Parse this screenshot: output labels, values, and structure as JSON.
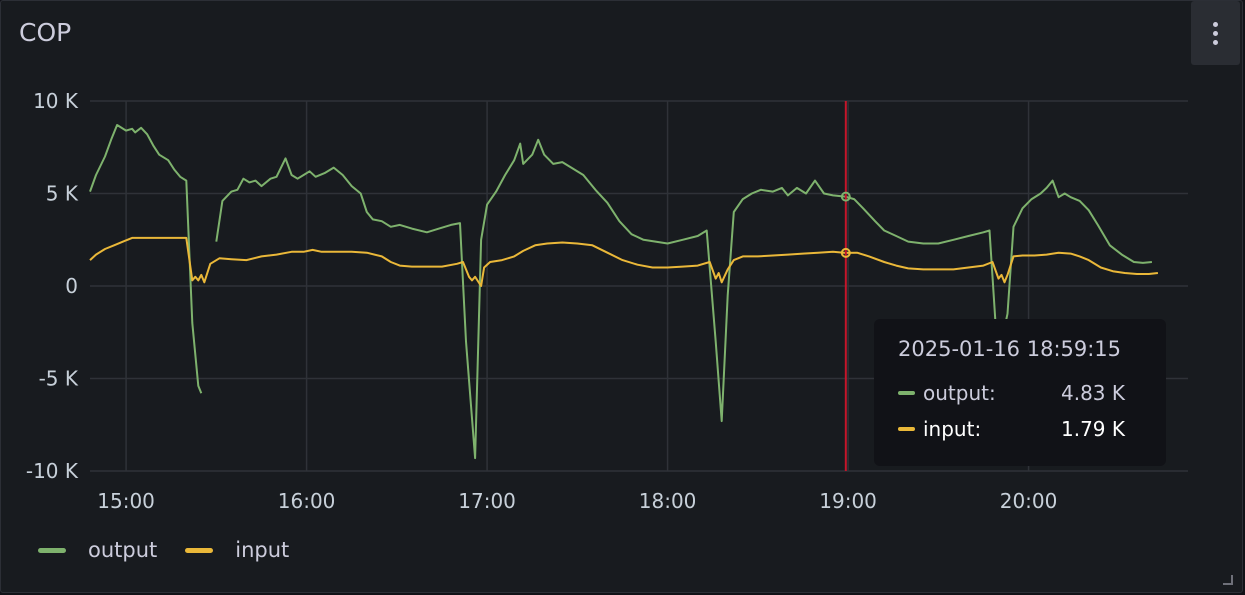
{
  "panel": {
    "title": "COP"
  },
  "colors": {
    "output": "#7eb26d",
    "input": "#eab839",
    "cursor": "#c4162a",
    "grid": "#2f3238"
  },
  "icons": {
    "menu": "vertical-dots-icon",
    "resize": "resize-handle-icon"
  },
  "tooltip": {
    "time": "2025-01-16 18:59:15",
    "rows": [
      {
        "label": "output:",
        "value": "4.83 K"
      },
      {
        "label": "input:",
        "value": "1.79 K"
      }
    ]
  },
  "chart_data": {
    "type": "line",
    "title": "COP",
    "xlabel": "",
    "ylabel": "",
    "x_ticks": [
      "15:00",
      "16:00",
      "17:00",
      "18:00",
      "19:00",
      "20:00"
    ],
    "y_ticks": [
      "10 K",
      "5 K",
      "0",
      "-5 K",
      "-10 K"
    ],
    "ylim": [
      -10000,
      10000
    ],
    "xlim": [
      "14:48",
      "20:53"
    ],
    "grid": true,
    "legend": "bottom-left",
    "cursor_time": "18:59:15",
    "series": [
      {
        "name": "output",
        "color": "#7eb26d",
        "points": [
          [
            "14:48",
            5100
          ],
          [
            "14:50",
            6000
          ],
          [
            "14:53",
            7000
          ],
          [
            "14:55",
            7900
          ],
          [
            "14:57",
            8700
          ],
          [
            "14:58",
            8600
          ],
          [
            "15:00",
            8400
          ],
          [
            "15:02",
            8500
          ],
          [
            "15:03",
            8300
          ],
          [
            "15:05",
            8550
          ],
          [
            "15:07",
            8200
          ],
          [
            "15:09",
            7600
          ],
          [
            "15:11",
            7100
          ],
          [
            "15:14",
            6800
          ],
          [
            "15:16",
            6300
          ],
          [
            "15:18",
            5900
          ],
          [
            "15:20",
            5700
          ],
          [
            "15:22",
            -2000
          ],
          [
            "15:24",
            -5400
          ],
          [
            "15:25",
            -5800
          ],
          null,
          [
            "15:30",
            2400
          ],
          [
            "15:32",
            4600
          ],
          [
            "15:35",
            5100
          ],
          [
            "15:37",
            5200
          ],
          [
            "15:39",
            5800
          ],
          [
            "15:41",
            5600
          ],
          [
            "15:43",
            5700
          ],
          [
            "15:45",
            5400
          ],
          [
            "15:48",
            5800
          ],
          [
            "15:50",
            5900
          ],
          [
            "15:53",
            6900
          ],
          [
            "15:55",
            6000
          ],
          [
            "15:57",
            5800
          ],
          [
            "15:59",
            6000
          ],
          [
            "16:01",
            6200
          ],
          [
            "16:03",
            5900
          ],
          [
            "16:06",
            6100
          ],
          [
            "16:09",
            6400
          ],
          [
            "16:12",
            6000
          ],
          [
            "16:15",
            5400
          ],
          [
            "16:18",
            5000
          ],
          [
            "16:20",
            4000
          ],
          [
            "16:22",
            3600
          ],
          [
            "16:25",
            3500
          ],
          [
            "16:28",
            3200
          ],
          [
            "16:31",
            3300
          ],
          [
            "16:35",
            3100
          ],
          [
            "16:40",
            2900
          ],
          [
            "16:44",
            3100
          ],
          [
            "16:48",
            3300
          ],
          [
            "16:51",
            3400
          ],
          [
            "16:53",
            -3000
          ],
          [
            "16:56",
            -9300
          ],
          [
            "16:58",
            2500
          ],
          [
            "17:00",
            4400
          ],
          [
            "17:03",
            5100
          ],
          [
            "17:06",
            6000
          ],
          [
            "17:09",
            6800
          ],
          [
            "17:11",
            7700
          ],
          [
            "17:12",
            6600
          ],
          [
            "17:15",
            7100
          ],
          [
            "17:17",
            7900
          ],
          [
            "17:19",
            7100
          ],
          [
            "17:22",
            6600
          ],
          [
            "17:25",
            6700
          ],
          [
            "17:28",
            6400
          ],
          [
            "17:32",
            6000
          ],
          [
            "17:36",
            5200
          ],
          [
            "17:40",
            4500
          ],
          [
            "17:44",
            3500
          ],
          [
            "17:48",
            2800
          ],
          [
            "17:52",
            2500
          ],
          [
            "17:56",
            2400
          ],
          [
            "18:00",
            2300
          ],
          [
            "18:05",
            2500
          ],
          [
            "18:10",
            2700
          ],
          [
            "18:13",
            3000
          ],
          [
            "18:16",
            -3000
          ],
          [
            "18:18",
            -7300
          ],
          [
            "18:20",
            -500
          ],
          [
            "18:22",
            4000
          ],
          [
            "18:25",
            4700
          ],
          [
            "18:28",
            5000
          ],
          [
            "18:31",
            5200
          ],
          [
            "18:35",
            5100
          ],
          [
            "18:38",
            5300
          ],
          [
            "18:40",
            4900
          ],
          [
            "18:43",
            5300
          ],
          [
            "18:46",
            5000
          ],
          [
            "18:49",
            5700
          ],
          [
            "18:52",
            5000
          ],
          [
            "18:55",
            4900
          ],
          [
            "18:59",
            4830
          ],
          [
            "19:02",
            4700
          ],
          [
            "19:05",
            4200
          ],
          [
            "19:09",
            3500
          ],
          [
            "19:12",
            3000
          ],
          [
            "19:16",
            2700
          ],
          [
            "19:20",
            2400
          ],
          [
            "19:25",
            2300
          ],
          [
            "19:30",
            2300
          ],
          [
            "19:35",
            2500
          ],
          [
            "19:40",
            2700
          ],
          [
            "19:45",
            2900
          ],
          [
            "19:47",
            3000
          ],
          [
            "19:49",
            -2000
          ],
          [
            "19:51",
            -3000
          ],
          [
            "19:53",
            -1500
          ],
          [
            "19:55",
            3200
          ],
          [
            "19:58",
            4200
          ],
          [
            "20:01",
            4700
          ],
          [
            "20:04",
            5000
          ],
          [
            "20:06",
            5300
          ],
          [
            "20:08",
            5700
          ],
          [
            "20:10",
            4800
          ],
          [
            "20:12",
            5000
          ],
          [
            "20:14",
            4800
          ],
          [
            "20:17",
            4600
          ],
          [
            "20:20",
            4100
          ],
          [
            "20:23",
            3300
          ],
          [
            "20:27",
            2200
          ],
          [
            "20:31",
            1700
          ],
          [
            "20:35",
            1300
          ],
          [
            "20:38",
            1250
          ],
          [
            "20:41",
            1300
          ]
        ]
      },
      {
        "name": "input",
        "color": "#eab839",
        "points": [
          [
            "14:48",
            1400
          ],
          [
            "14:50",
            1700
          ],
          [
            "14:53",
            2000
          ],
          [
            "14:56",
            2200
          ],
          [
            "14:59",
            2400
          ],
          [
            "15:02",
            2600
          ],
          [
            "15:07",
            2600
          ],
          [
            "15:12",
            2600
          ],
          [
            "15:17",
            2600
          ],
          [
            "15:20",
            2600
          ],
          [
            "15:22",
            300
          ],
          [
            "15:23",
            500
          ],
          [
            "15:24",
            300
          ],
          [
            "15:25",
            600
          ],
          [
            "15:26",
            200
          ],
          [
            "15:28",
            1200
          ],
          [
            "15:31",
            1500
          ],
          [
            "15:35",
            1450
          ],
          [
            "15:40",
            1400
          ],
          [
            "15:45",
            1600
          ],
          [
            "15:50",
            1700
          ],
          [
            "15:55",
            1850
          ],
          [
            "15:59",
            1850
          ],
          [
            "16:02",
            1950
          ],
          [
            "16:05",
            1850
          ],
          [
            "16:10",
            1850
          ],
          [
            "16:15",
            1850
          ],
          [
            "16:20",
            1800
          ],
          [
            "16:25",
            1600
          ],
          [
            "16:28",
            1300
          ],
          [
            "16:31",
            1100
          ],
          [
            "16:35",
            1050
          ],
          [
            "16:40",
            1050
          ],
          [
            "16:45",
            1050
          ],
          [
            "16:50",
            1200
          ],
          [
            "16:52",
            1300
          ],
          [
            "16:54",
            500
          ],
          [
            "16:55",
            300
          ],
          [
            "16:56",
            500
          ],
          [
            "16:58",
            0
          ],
          [
            "16:59",
            1000
          ],
          [
            "17:01",
            1300
          ],
          [
            "17:05",
            1400
          ],
          [
            "17:09",
            1600
          ],
          [
            "17:12",
            1900
          ],
          [
            "17:16",
            2200
          ],
          [
            "17:20",
            2300
          ],
          [
            "17:25",
            2350
          ],
          [
            "17:30",
            2300
          ],
          [
            "17:35",
            2200
          ],
          [
            "17:40",
            1800
          ],
          [
            "17:45",
            1400
          ],
          [
            "17:50",
            1150
          ],
          [
            "17:55",
            1000
          ],
          [
            "18:00",
            1000
          ],
          [
            "18:05",
            1050
          ],
          [
            "18:10",
            1100
          ],
          [
            "18:14",
            1300
          ],
          [
            "18:16",
            400
          ],
          [
            "18:17",
            700
          ],
          [
            "18:18",
            200
          ],
          [
            "18:20",
            900
          ],
          [
            "18:22",
            1400
          ],
          [
            "18:25",
            1600
          ],
          [
            "18:30",
            1600
          ],
          [
            "18:35",
            1650
          ],
          [
            "18:40",
            1700
          ],
          [
            "18:45",
            1750
          ],
          [
            "18:50",
            1800
          ],
          [
            "18:55",
            1850
          ],
          [
            "18:59",
            1790
          ],
          [
            "19:03",
            1800
          ],
          [
            "19:07",
            1600
          ],
          [
            "19:12",
            1300
          ],
          [
            "19:16",
            1100
          ],
          [
            "19:20",
            950
          ],
          [
            "19:25",
            900
          ],
          [
            "19:30",
            900
          ],
          [
            "19:35",
            900
          ],
          [
            "19:40",
            1000
          ],
          [
            "19:45",
            1100
          ],
          [
            "19:48",
            1300
          ],
          [
            "19:50",
            400
          ],
          [
            "19:51",
            600
          ],
          [
            "19:52",
            200
          ],
          [
            "19:53",
            600
          ],
          [
            "19:55",
            1600
          ],
          [
            "19:58",
            1650
          ],
          [
            "20:02",
            1650
          ],
          [
            "20:06",
            1700
          ],
          [
            "20:10",
            1800
          ],
          [
            "20:14",
            1750
          ],
          [
            "20:17",
            1600
          ],
          [
            "20:20",
            1400
          ],
          [
            "20:24",
            1000
          ],
          [
            "20:28",
            800
          ],
          [
            "20:32",
            700
          ],
          [
            "20:36",
            650
          ],
          [
            "20:40",
            650
          ],
          [
            "20:43",
            700
          ]
        ]
      }
    ]
  }
}
